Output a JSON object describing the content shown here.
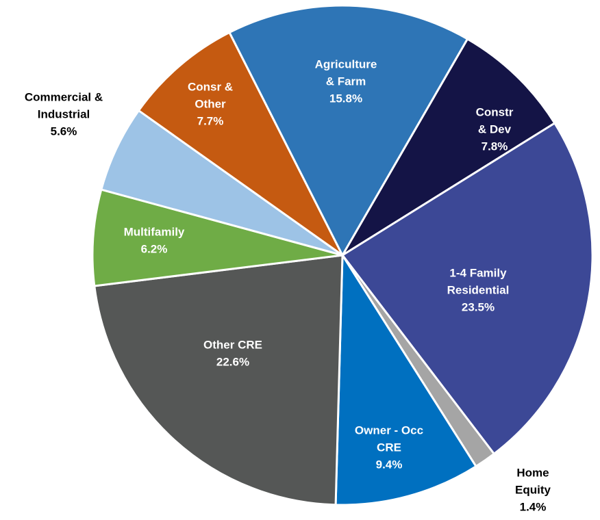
{
  "chart_data": {
    "type": "pie",
    "categories": [
      [
        "Constr",
        "& Dev"
      ],
      [
        "1-4 Family",
        "Residential"
      ],
      [
        "Home",
        "Equity"
      ],
      [
        "Owner - Occ",
        "CRE"
      ],
      [
        "Other CRE"
      ],
      [
        "Multifamily"
      ],
      [
        "Commercial &",
        "Industrial"
      ],
      [
        "Consr &",
        "Other"
      ],
      [
        "Agriculture",
        "& Farm"
      ]
    ],
    "values": [
      7.8,
      23.5,
      1.4,
      9.4,
      22.6,
      6.2,
      5.6,
      7.7,
      15.8
    ],
    "value_labels": [
      "7.8%",
      "23.5%",
      "1.4%",
      "9.4%",
      "22.6%",
      "6.2%",
      "5.6%",
      "7.7%",
      "15.8%"
    ],
    "colors": [
      "#141446",
      "#3c4896",
      "#a5a5a5",
      "#0070c0",
      "#555756",
      "#6fac46",
      "#9dc3e6",
      "#c55a11",
      "#2e75b6"
    ]
  }
}
